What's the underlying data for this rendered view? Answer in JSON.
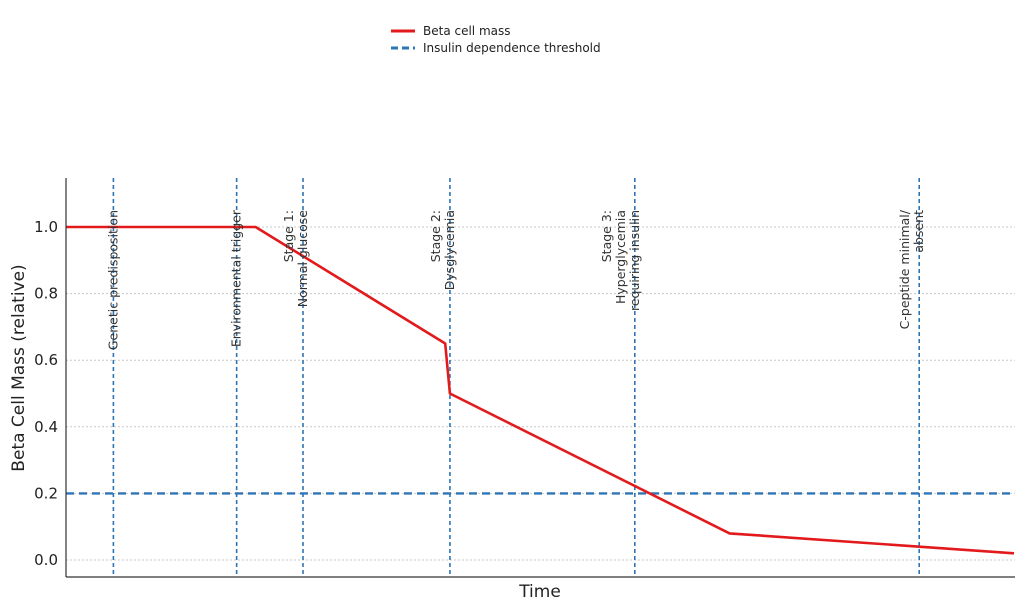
{
  "chart_data": {
    "type": "line",
    "xlabel": "Time",
    "ylabel": "Beta Cell Mass (relative)",
    "ylim": [
      -0.05,
      1.15
    ],
    "xlim": [
      0,
      10
    ],
    "yticks": [
      "0.0",
      "0.2",
      "0.4",
      "0.6",
      "0.8",
      "1.0"
    ],
    "grid": true,
    "legend_position": "top-center",
    "series": [
      {
        "name": "Beta cell mass",
        "color": "#e31a1c",
        "x": [
          0,
          2,
          4,
          4.05,
          7,
          10
        ],
        "y": [
          1.0,
          1.0,
          0.65,
          0.5,
          0.08,
          0.02
        ]
      }
    ],
    "threshold": {
      "name": "Insulin dependence threshold",
      "color": "#2e75b6",
      "y": 0.2
    },
    "annotations": [
      {
        "x": 0.5,
        "lines": [
          "Genetic predisposition"
        ]
      },
      {
        "x": 1.8,
        "lines": [
          "Environmental trigger"
        ]
      },
      {
        "x": 2.5,
        "lines": [
          "Stage 1:",
          "Normal glucose"
        ]
      },
      {
        "x": 4.05,
        "lines": [
          "Stage 2:",
          "Dysglycemia"
        ]
      },
      {
        "x": 6.0,
        "lines": [
          "Stage 3:",
          "Hyperglycemia",
          "requiring insulin"
        ]
      },
      {
        "x": 9.0,
        "lines": [
          "C-peptide minimal/",
          "absent"
        ]
      }
    ]
  }
}
